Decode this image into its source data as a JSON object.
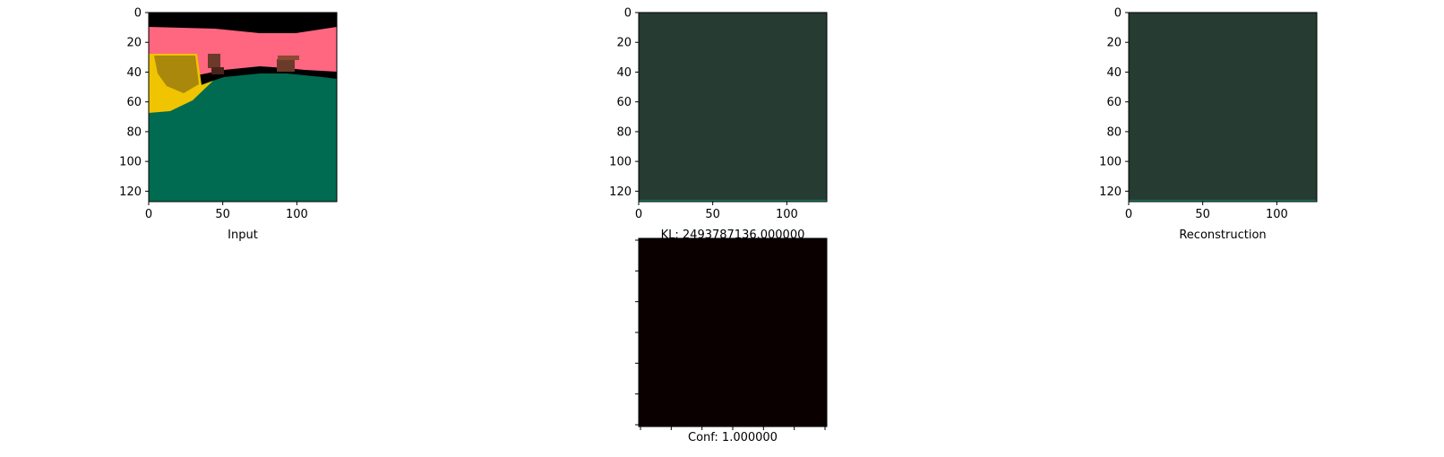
{
  "chart_data": [
    {
      "type": "image",
      "panel": "input",
      "xlabel": "Input",
      "xticks": [
        "0",
        "50",
        "100"
      ],
      "yticks": [
        "0",
        "20",
        "40",
        "60",
        "80",
        "100",
        "120"
      ],
      "xlim": [
        0,
        127
      ],
      "ylim": [
        127,
        0
      ],
      "colors": {
        "sky": "#000000",
        "wall": "#ff6680",
        "floor": "#006b50",
        "object": "#f0c400",
        "box": "#6b3a2a"
      }
    },
    {
      "type": "image",
      "panel": "sample",
      "xlabel": "KL: 2493787136.000000",
      "xticks": [
        "0",
        "50",
        "100"
      ],
      "yticks": [
        "0",
        "20",
        "40",
        "60",
        "80",
        "100",
        "120"
      ],
      "xlim": [
        0,
        127
      ],
      "ylim": [
        127,
        0
      ],
      "colors": {
        "fill": "#263b31"
      }
    },
    {
      "type": "image",
      "panel": "reconstruction",
      "xlabel": "Reconstruction",
      "xticks": [
        "0",
        "50",
        "100"
      ],
      "yticks": [
        "0",
        "20",
        "40",
        "60",
        "80",
        "100",
        "120"
      ],
      "xlim": [
        0,
        127
      ],
      "ylim": [
        127,
        0
      ],
      "colors": {
        "fill": "#263b31"
      }
    },
    {
      "type": "heatmap",
      "panel": "confidence",
      "xlabel": "Conf: 1.000000",
      "colors": {
        "fill": "#0b0000"
      }
    }
  ]
}
